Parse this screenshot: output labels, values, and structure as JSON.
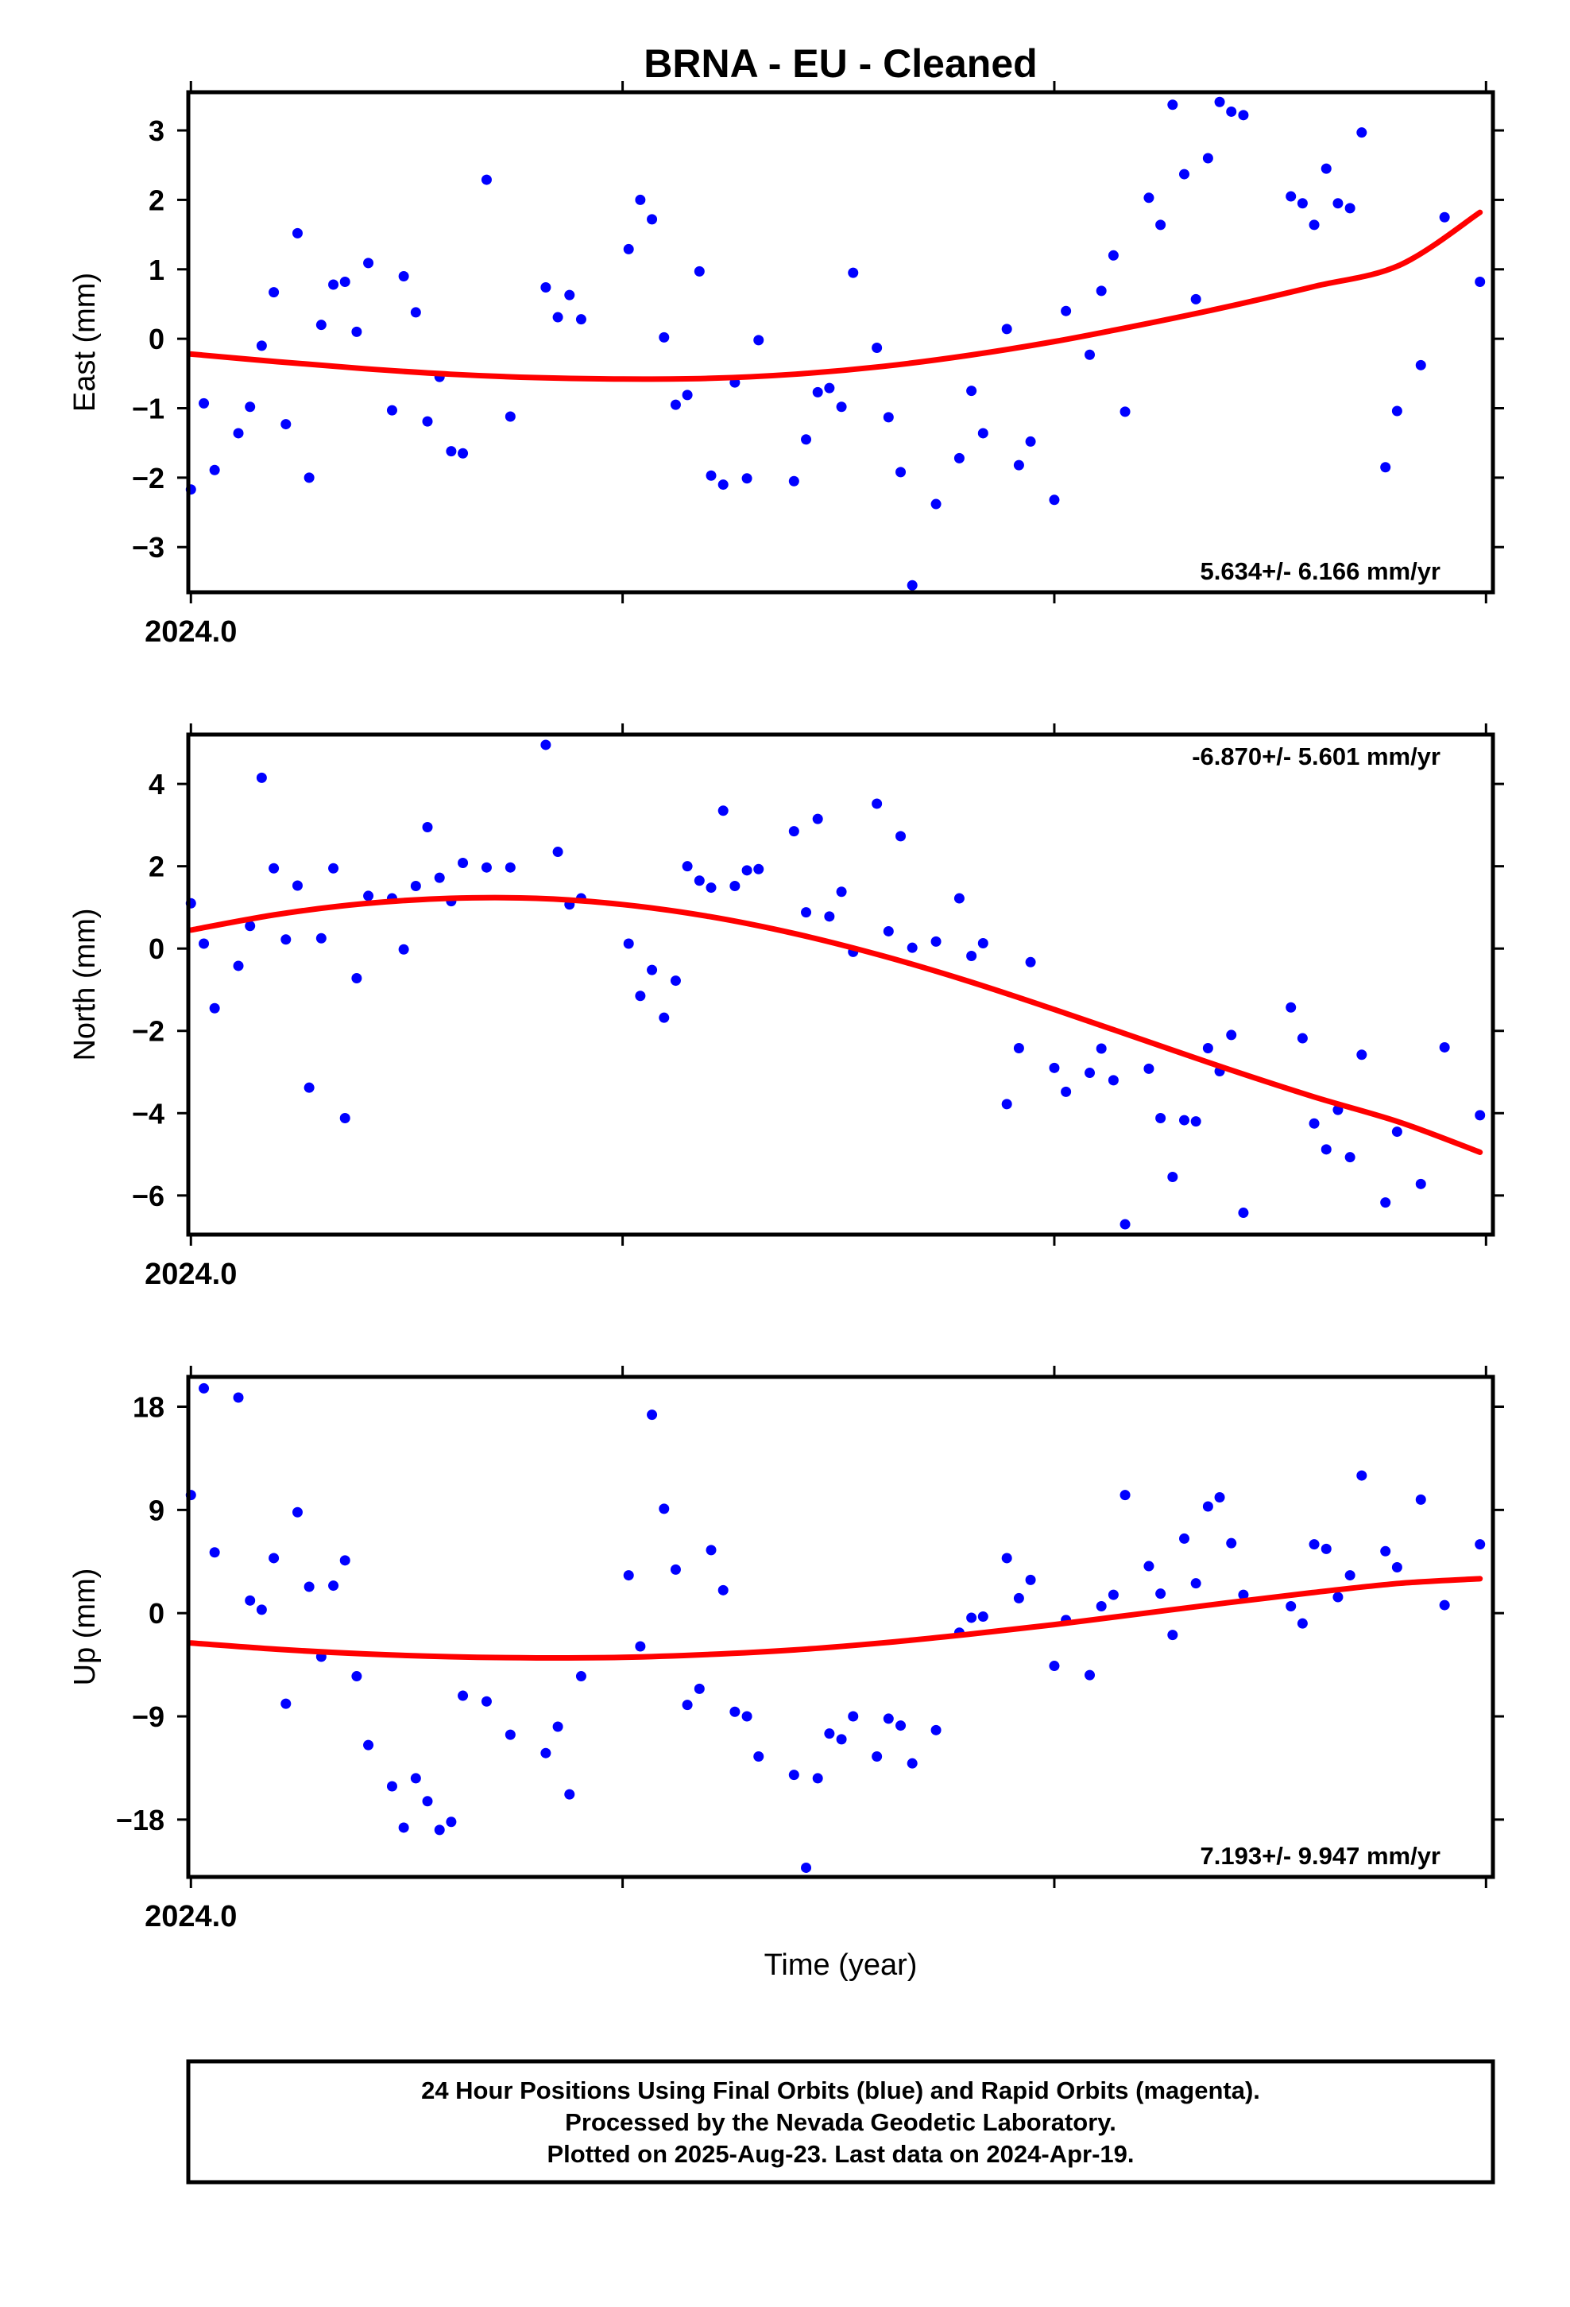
{
  "title": "BRNA  - EU - Cleaned",
  "x_axis_label": "Time (year)",
  "x_tick_label": "2024.0",
  "footer": {
    "line1": "24 Hour Positions Using Final Orbits (blue) and Rapid Orbits (magenta).",
    "line2": "Processed by the Nevada Geodetic Laboratory.",
    "line3": "Plotted on 2025-Aug-23. Last data on 2024-Apr-19."
  },
  "colors": {
    "points": "#0000ff",
    "fit": "#ff0000",
    "axes": "#000000"
  },
  "chart_data": [
    {
      "type": "scatter",
      "ylabel": "East (mm)",
      "yticks": [
        -3,
        -2,
        -1,
        0,
        1,
        2,
        3
      ],
      "ytick_labels": [
        "−3",
        "−2",
        "−1",
        "0",
        "1",
        "2",
        "3"
      ],
      "ylim": [
        -3.65,
        3.55
      ],
      "xlim": [
        2023.9994,
        2024.3016
      ],
      "xticks": [
        2024.0,
        2024.1,
        2024.2,
        2024.3
      ],
      "rate_label": "5.634+/- 6.166 mm/yr",
      "rate_position": "bottom-right",
      "points": [
        [
          2024.0,
          -2.17
        ],
        [
          2024.003,
          -0.93
        ],
        [
          2024.0055,
          -1.89
        ],
        [
          2024.011,
          -1.36
        ],
        [
          2024.0137,
          -0.98
        ],
        [
          2024.0164,
          -0.1
        ],
        [
          2024.0192,
          0.67
        ],
        [
          2024.022,
          -1.23
        ],
        [
          2024.0247,
          1.52
        ],
        [
          2024.0274,
          -2.0
        ],
        [
          2024.0302,
          0.2
        ],
        [
          2024.033,
          0.78
        ],
        [
          2024.0357,
          0.82
        ],
        [
          2024.0384,
          0.1
        ],
        [
          2024.0411,
          1.09
        ],
        [
          2024.0466,
          -1.03
        ],
        [
          2024.0493,
          0.9
        ],
        [
          2024.0521,
          0.38
        ],
        [
          2024.0548,
          -1.19
        ],
        [
          2024.0576,
          -0.55
        ],
        [
          2024.0603,
          -1.62
        ],
        [
          2024.063,
          -1.65
        ],
        [
          2024.0685,
          2.29
        ],
        [
          2024.074,
          -1.12
        ],
        [
          2024.0822,
          0.74
        ],
        [
          2024.085,
          0.31
        ],
        [
          2024.0877,
          0.63
        ],
        [
          2024.0904,
          0.28
        ],
        [
          2024.1014,
          1.29
        ],
        [
          2024.1041,
          2.0
        ],
        [
          2024.1068,
          1.72
        ],
        [
          2024.1096,
          0.02
        ],
        [
          2024.1123,
          -0.95
        ],
        [
          2024.115,
          -0.81
        ],
        [
          2024.1178,
          0.97
        ],
        [
          2024.1205,
          -1.97
        ],
        [
          2024.1233,
          -2.1
        ],
        [
          2024.126,
          -0.63
        ],
        [
          2024.1288,
          -2.01
        ],
        [
          2024.1315,
          -0.02
        ],
        [
          2024.1397,
          -2.05
        ],
        [
          2024.1425,
          -1.45
        ],
        [
          2024.1452,
          -0.77
        ],
        [
          2024.1479,
          -0.71
        ],
        [
          2024.1507,
          -0.98
        ],
        [
          2024.1534,
          0.95
        ],
        [
          2024.1589,
          -0.13
        ],
        [
          2024.1616,
          -1.13
        ],
        [
          2024.1644,
          -1.92
        ],
        [
          2024.1671,
          -3.55
        ],
        [
          2024.1726,
          -2.38
        ],
        [
          2024.178,
          -1.72
        ],
        [
          2024.1808,
          -0.75
        ],
        [
          2024.1835,
          -1.36
        ],
        [
          2024.189,
          0.14
        ],
        [
          2024.1918,
          -1.82
        ],
        [
          2024.1945,
          -1.48
        ],
        [
          2024.2,
          -2.32
        ],
        [
          2024.2027,
          0.4
        ],
        [
          2024.2082,
          -0.23
        ],
        [
          2024.2109,
          0.69
        ],
        [
          2024.2137,
          1.2
        ],
        [
          2024.2164,
          -1.05
        ],
        [
          2024.2219,
          2.03
        ],
        [
          2024.2246,
          1.64
        ],
        [
          2024.2274,
          3.37
        ],
        [
          2024.2301,
          2.37
        ],
        [
          2024.2328,
          0.57
        ],
        [
          2024.2356,
          2.6
        ],
        [
          2024.2383,
          3.41
        ],
        [
          2024.241,
          3.27
        ],
        [
          2024.2438,
          3.22
        ],
        [
          2024.2548,
          2.05
        ],
        [
          2024.2575,
          1.95
        ],
        [
          2024.2602,
          1.64
        ],
        [
          2024.263,
          2.45
        ],
        [
          2024.2657,
          1.95
        ],
        [
          2024.2685,
          1.88
        ],
        [
          2024.2712,
          2.97
        ],
        [
          2024.2767,
          -1.85
        ],
        [
          2024.2794,
          -1.04
        ],
        [
          2024.2849,
          -0.38
        ],
        [
          2024.2904,
          1.75
        ],
        [
          2024.2986,
          0.82
        ]
      ],
      "fit": [
        [
          2024.0,
          -0.22
        ],
        [
          2024.02,
          -0.33
        ],
        [
          2024.04,
          -0.43
        ],
        [
          2024.06,
          -0.51
        ],
        [
          2024.08,
          -0.56
        ],
        [
          2024.1,
          -0.58
        ],
        [
          2024.12,
          -0.57
        ],
        [
          2024.14,
          -0.51
        ],
        [
          2024.16,
          -0.4
        ],
        [
          2024.18,
          -0.24
        ],
        [
          2024.2,
          -0.04
        ],
        [
          2024.22,
          0.2
        ],
        [
          2024.24,
          0.46
        ],
        [
          2024.26,
          0.75
        ],
        [
          2024.28,
          1.06
        ],
        [
          2024.2986,
          1.82
        ]
      ]
    },
    {
      "type": "scatter",
      "ylabel": "North (mm)",
      "yticks": [
        -6,
        -4,
        -2,
        0,
        2,
        4
      ],
      "ytick_labels": [
        "−6",
        "−4",
        "−2",
        "0",
        "2",
        "4"
      ],
      "ylim": [
        -6.95,
        5.2
      ],
      "xlim": [
        2023.9994,
        2024.3016
      ],
      "xticks": [
        2024.0,
        2024.1,
        2024.2,
        2024.3
      ],
      "rate_label": "-6.870+/- 5.601 mm/yr",
      "rate_position": "top-right",
      "points": [
        [
          2024.0,
          1.1
        ],
        [
          2024.003,
          0.12
        ],
        [
          2024.0055,
          -1.45
        ],
        [
          2024.011,
          -0.42
        ],
        [
          2024.0137,
          0.55
        ],
        [
          2024.0164,
          4.15
        ],
        [
          2024.0192,
          1.95
        ],
        [
          2024.022,
          0.22
        ],
        [
          2024.0247,
          1.53
        ],
        [
          2024.0274,
          -3.38
        ],
        [
          2024.0302,
          0.25
        ],
        [
          2024.033,
          1.95
        ],
        [
          2024.0357,
          -4.12
        ],
        [
          2024.0384,
          -0.72
        ],
        [
          2024.0411,
          1.28
        ],
        [
          2024.0466,
          1.22
        ],
        [
          2024.0493,
          -0.02
        ],
        [
          2024.0521,
          1.52
        ],
        [
          2024.0548,
          2.95
        ],
        [
          2024.0576,
          1.72
        ],
        [
          2024.0603,
          1.15
        ],
        [
          2024.063,
          2.08
        ],
        [
          2024.0685,
          1.97
        ],
        [
          2024.074,
          1.97
        ],
        [
          2024.0822,
          4.95
        ],
        [
          2024.085,
          2.35
        ],
        [
          2024.0877,
          1.07
        ],
        [
          2024.0904,
          1.22
        ],
        [
          2024.1014,
          0.12
        ],
        [
          2024.1041,
          -1.15
        ],
        [
          2024.1068,
          -0.52
        ],
        [
          2024.1096,
          -1.68
        ],
        [
          2024.1123,
          -0.78
        ],
        [
          2024.115,
          2.0
        ],
        [
          2024.1178,
          1.65
        ],
        [
          2024.1205,
          1.48
        ],
        [
          2024.1233,
          3.35
        ],
        [
          2024.126,
          1.52
        ],
        [
          2024.1288,
          1.9
        ],
        [
          2024.1315,
          1.93
        ],
        [
          2024.1397,
          2.85
        ],
        [
          2024.1425,
          0.88
        ],
        [
          2024.1452,
          3.15
        ],
        [
          2024.1479,
          0.78
        ],
        [
          2024.1507,
          1.38
        ],
        [
          2024.1534,
          -0.08
        ],
        [
          2024.1589,
          3.52
        ],
        [
          2024.1616,
          0.42
        ],
        [
          2024.1644,
          2.73
        ],
        [
          2024.1671,
          0.02
        ],
        [
          2024.1726,
          0.17
        ],
        [
          2024.178,
          1.22
        ],
        [
          2024.1808,
          -0.18
        ],
        [
          2024.1835,
          0.13
        ],
        [
          2024.189,
          -3.78
        ],
        [
          2024.1918,
          -2.42
        ],
        [
          2024.1945,
          -0.33
        ],
        [
          2024.2,
          -2.9
        ],
        [
          2024.2027,
          -3.48
        ],
        [
          2024.2082,
          -3.02
        ],
        [
          2024.2109,
          -2.43
        ],
        [
          2024.2137,
          -3.2
        ],
        [
          2024.2164,
          -6.7
        ],
        [
          2024.2219,
          -2.92
        ],
        [
          2024.2246,
          -4.12
        ],
        [
          2024.2274,
          -5.55
        ],
        [
          2024.2301,
          -4.17
        ],
        [
          2024.2328,
          -4.2
        ],
        [
          2024.2356,
          -2.42
        ],
        [
          2024.2383,
          -2.98
        ],
        [
          2024.241,
          -2.1
        ],
        [
          2024.2438,
          -6.42
        ],
        [
          2024.2548,
          -1.43
        ],
        [
          2024.2575,
          -2.18
        ],
        [
          2024.2602,
          -4.25
        ],
        [
          2024.263,
          -4.88
        ],
        [
          2024.2657,
          -3.92
        ],
        [
          2024.2685,
          -5.07
        ],
        [
          2024.2712,
          -2.58
        ],
        [
          2024.2767,
          -6.17
        ],
        [
          2024.2794,
          -4.45
        ],
        [
          2024.2849,
          -5.72
        ],
        [
          2024.2904,
          -2.4
        ],
        [
          2024.2986,
          -4.05
        ]
      ],
      "fit": [
        [
          2024.0,
          0.45
        ],
        [
          2024.02,
          0.83
        ],
        [
          2024.04,
          1.09
        ],
        [
          2024.06,
          1.22
        ],
        [
          2024.08,
          1.22
        ],
        [
          2024.1,
          1.07
        ],
        [
          2024.12,
          0.78
        ],
        [
          2024.14,
          0.36
        ],
        [
          2024.16,
          -0.17
        ],
        [
          2024.18,
          -0.79
        ],
        [
          2024.2,
          -1.48
        ],
        [
          2024.22,
          -2.2
        ],
        [
          2024.24,
          -2.92
        ],
        [
          2024.26,
          -3.6
        ],
        [
          2024.28,
          -4.22
        ],
        [
          2024.2986,
          -4.95
        ]
      ]
    },
    {
      "type": "scatter",
      "ylabel": "Up (mm)",
      "yticks": [
        -18,
        -9,
        0,
        9,
        18
      ],
      "ytick_labels": [
        "−18",
        "−9",
        "0",
        "9",
        "18"
      ],
      "ylim": [
        -23.0,
        20.6
      ],
      "xlim": [
        2023.9994,
        2024.3016
      ],
      "xticks": [
        2024.0,
        2024.1,
        2024.2,
        2024.3
      ],
      "rate_label": "7.193+/- 9.947 mm/yr",
      "rate_position": "bottom-right",
      "points": [
        [
          2024.0,
          10.3
        ],
        [
          2024.003,
          19.6
        ],
        [
          2024.0055,
          5.3
        ],
        [
          2024.011,
          18.8
        ],
        [
          2024.0137,
          1.1
        ],
        [
          2024.0164,
          0.3
        ],
        [
          2024.0192,
          4.8
        ],
        [
          2024.022,
          -7.9
        ],
        [
          2024.0247,
          8.8
        ],
        [
          2024.0274,
          2.3
        ],
        [
          2024.0302,
          -3.8
        ],
        [
          2024.033,
          2.4
        ],
        [
          2024.0357,
          4.6
        ],
        [
          2024.0384,
          -5.5
        ],
        [
          2024.0411,
          -11.5
        ],
        [
          2024.0466,
          -15.1
        ],
        [
          2024.0493,
          -18.7
        ],
        [
          2024.0521,
          -14.4
        ],
        [
          2024.0548,
          -16.4
        ],
        [
          2024.0576,
          -18.9
        ],
        [
          2024.0603,
          -18.2
        ],
        [
          2024.063,
          -7.2
        ],
        [
          2024.0685,
          -7.7
        ],
        [
          2024.074,
          -10.6
        ],
        [
          2024.0822,
          -12.2
        ],
        [
          2024.085,
          -9.9
        ],
        [
          2024.0877,
          -15.8
        ],
        [
          2024.0904,
          -5.5
        ],
        [
          2024.1014,
          3.3
        ],
        [
          2024.1041,
          -2.9
        ],
        [
          2024.1068,
          17.3
        ],
        [
          2024.1096,
          9.1
        ],
        [
          2024.1123,
          3.8
        ],
        [
          2024.115,
          -8.0
        ],
        [
          2024.1178,
          -6.6
        ],
        [
          2024.1205,
          5.5
        ],
        [
          2024.1233,
          2.0
        ],
        [
          2024.126,
          -8.6
        ],
        [
          2024.1288,
          -9.0
        ],
        [
          2024.1315,
          -12.5
        ],
        [
          2024.1397,
          -14.1
        ],
        [
          2024.1425,
          -22.2
        ],
        [
          2024.1452,
          -14.4
        ],
        [
          2024.1479,
          -10.5
        ],
        [
          2024.1507,
          -11.0
        ],
        [
          2024.1534,
          -9.0
        ],
        [
          2024.1589,
          -12.5
        ],
        [
          2024.1616,
          -9.2
        ],
        [
          2024.1644,
          -9.8
        ],
        [
          2024.1671,
          -13.1
        ],
        [
          2024.1726,
          -10.2
        ],
        [
          2024.178,
          -1.7
        ],
        [
          2024.1808,
          -0.4
        ],
        [
          2024.1835,
          -0.3
        ],
        [
          2024.189,
          4.8
        ],
        [
          2024.1918,
          1.3
        ],
        [
          2024.1945,
          2.9
        ],
        [
          2024.2,
          -4.6
        ],
        [
          2024.2027,
          -0.6
        ],
        [
          2024.2082,
          -5.4
        ],
        [
          2024.2109,
          0.6
        ],
        [
          2024.2137,
          1.6
        ],
        [
          2024.2164,
          10.3
        ],
        [
          2024.2219,
          4.1
        ],
        [
          2024.2246,
          1.7
        ],
        [
          2024.2274,
          -1.9
        ],
        [
          2024.2301,
          6.5
        ],
        [
          2024.2328,
          2.6
        ],
        [
          2024.2356,
          9.3
        ],
        [
          2024.2383,
          10.1
        ],
        [
          2024.241,
          6.1
        ],
        [
          2024.2438,
          1.6
        ],
        [
          2024.2548,
          0.6
        ],
        [
          2024.2575,
          -0.9
        ],
        [
          2024.2602,
          6.0
        ],
        [
          2024.263,
          5.6
        ],
        [
          2024.2657,
          1.4
        ],
        [
          2024.2685,
          3.3
        ],
        [
          2024.2712,
          12.0
        ],
        [
          2024.2767,
          5.4
        ],
        [
          2024.2794,
          4.0
        ],
        [
          2024.2849,
          9.9
        ],
        [
          2024.2904,
          0.7
        ],
        [
          2024.2986,
          6.0
        ]
      ],
      "fit": [
        [
          2024.0,
          -2.6
        ],
        [
          2024.02,
          -3.15
        ],
        [
          2024.04,
          -3.55
        ],
        [
          2024.06,
          -3.8
        ],
        [
          2024.08,
          -3.9
        ],
        [
          2024.1,
          -3.85
        ],
        [
          2024.12,
          -3.6
        ],
        [
          2024.14,
          -3.2
        ],
        [
          2024.16,
          -2.6
        ],
        [
          2024.18,
          -1.85
        ],
        [
          2024.2,
          -1.0
        ],
        [
          2024.22,
          -0.05
        ],
        [
          2024.24,
          0.9
        ],
        [
          2024.26,
          1.8
        ],
        [
          2024.28,
          2.6
        ],
        [
          2024.2986,
          3.0
        ]
      ]
    }
  ]
}
